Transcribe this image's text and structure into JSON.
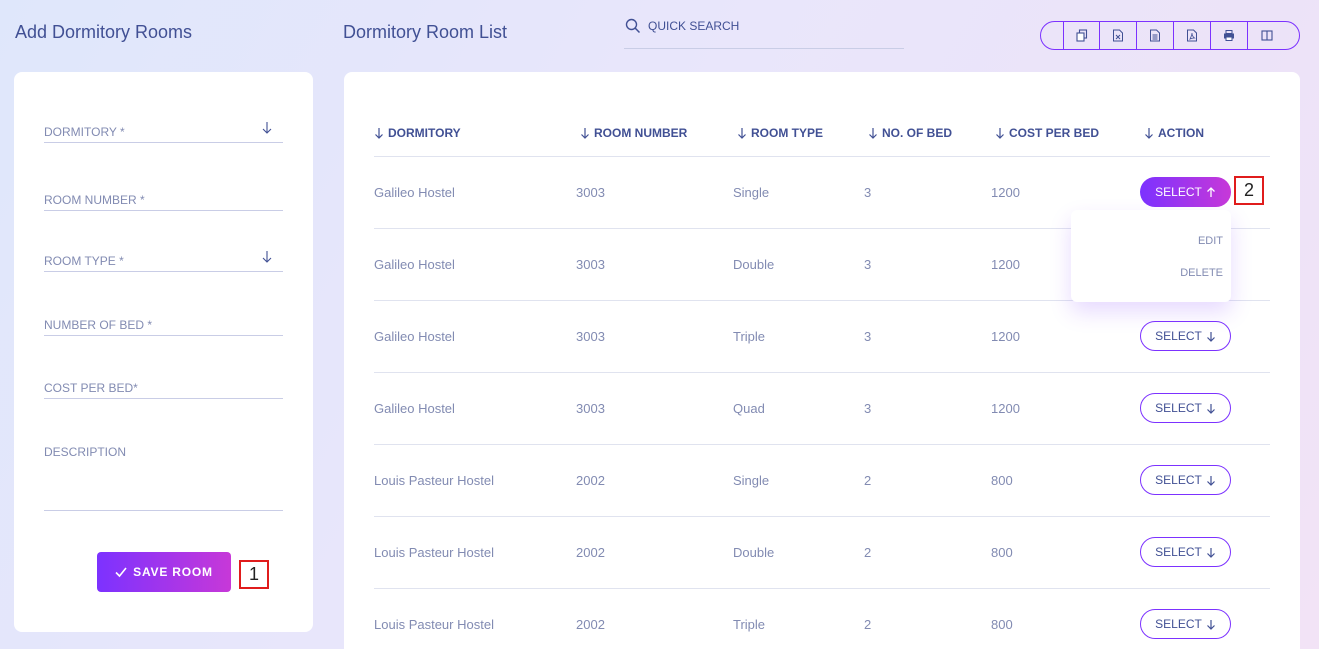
{
  "left_panel": {
    "title": "Add Dormitory Rooms",
    "fields": {
      "dormitory": "DORMITORY *",
      "room_number": "ROOM NUMBER *",
      "room_type": "ROOM TYPE *",
      "number_of_bed": "NUMBER OF BED *",
      "cost_per_bed": "COST PER BED*",
      "description": "DESCRIPTION"
    },
    "save_label": "SAVE ROOM"
  },
  "right_panel": {
    "title": "Dormitory Room List",
    "search": {
      "placeholder": "QUICK SEARCH",
      "icon": "search-icon"
    },
    "toolbar": [
      "copy-icon",
      "excel-icon",
      "csv-icon",
      "pdf-icon",
      "print-icon",
      "columns-icon"
    ]
  },
  "table": {
    "columns": {
      "dormitory": "DORMITORY",
      "room_number": "ROOM NUMBER",
      "room_type": "ROOM TYPE",
      "no_of_bed": "NO. OF BED",
      "cost_per_bed": "COST PER BED",
      "action": "ACTION"
    },
    "rows": [
      {
        "dormitory": "Galileo Hostel",
        "room_number": "3003",
        "room_type": "Single",
        "beds": "3",
        "cost": "1200"
      },
      {
        "dormitory": "Galileo Hostel",
        "room_number": "3003",
        "room_type": "Double",
        "beds": "3",
        "cost": "1200"
      },
      {
        "dormitory": "Galileo Hostel",
        "room_number": "3003",
        "room_type": "Triple",
        "beds": "3",
        "cost": "1200"
      },
      {
        "dormitory": "Galileo Hostel",
        "room_number": "3003",
        "room_type": "Quad",
        "beds": "3",
        "cost": "1200"
      },
      {
        "dormitory": "Louis Pasteur Hostel",
        "room_number": "2002",
        "room_type": "Single",
        "beds": "2",
        "cost": "800"
      },
      {
        "dormitory": "Louis Pasteur Hostel",
        "room_number": "2002",
        "room_type": "Double",
        "beds": "2",
        "cost": "800"
      },
      {
        "dormitory": "Louis Pasteur Hostel",
        "room_number": "2002",
        "room_type": "Triple",
        "beds": "2",
        "cost": "800"
      }
    ],
    "select_label": "SELECT"
  },
  "dropdown": {
    "edit": "EDIT",
    "delete": "DELETE"
  },
  "markers": {
    "m1": "1",
    "m2": "2"
  },
  "colors": {
    "accent": "#7c32ff",
    "accent_end": "#c738d8",
    "text": "#415094",
    "muted": "#828bb2",
    "marker": "#e01c1c"
  }
}
